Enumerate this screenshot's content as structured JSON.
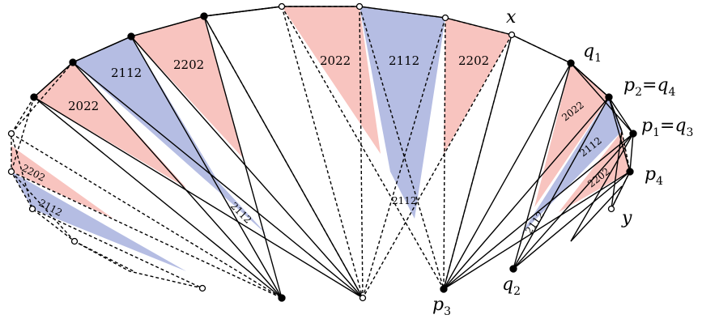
{
  "colors": {
    "pink": "#f8c4bf",
    "blue": "#b5bde3",
    "line": "#000000",
    "background": "#ffffff"
  },
  "point_labels": {
    "x": "x",
    "y": "y",
    "q1": {
      "base": "q",
      "sub": "1"
    },
    "p2q4": {
      "base1": "p",
      "sub1": "2",
      "eq": "=",
      "base2": "q",
      "sub2": "4"
    },
    "p1q3": {
      "base1": "p",
      "sub1": "1",
      "eq": "=",
      "base2": "q",
      "sub2": "3"
    },
    "p4": {
      "base": "p",
      "sub": "4"
    },
    "q2": {
      "base": "q",
      "sub": "2"
    },
    "p3": {
      "base": "p",
      "sub": "3"
    }
  },
  "region_labels": {
    "r1": "2022",
    "r2": "2112",
    "r3": "2202",
    "r4": "2022",
    "r5": "2112",
    "r6": "2202",
    "r7": "2202",
    "r8": "2112",
    "r9": "2112",
    "r10": "2112",
    "r11": "2022",
    "r12": "2112",
    "r13": "2202",
    "r14": "2112"
  }
}
